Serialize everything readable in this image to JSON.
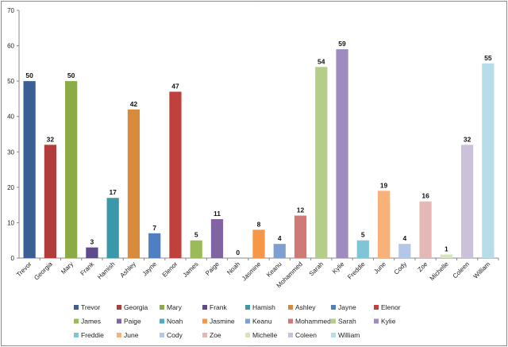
{
  "chart_data": {
    "type": "bar",
    "title": "",
    "xlabel": "",
    "ylabel": "",
    "ylim": [
      0,
      70
    ],
    "yticks": [
      0,
      10,
      20,
      30,
      40,
      50,
      60,
      70
    ],
    "grid": false,
    "legend_position": "bottom",
    "categories": [
      "Trevor",
      "Georgia",
      "Mary",
      "Frank",
      "Hamish",
      "Ashley",
      "Jayne",
      "Elenor",
      "James",
      "Paige",
      "Noah",
      "Jasmine",
      "Keanu",
      "Mohammed",
      "Sarah",
      "Kylie",
      "Freddie",
      "June",
      "Cody",
      "Zoe",
      "Michelle",
      "Coleen",
      "William"
    ],
    "values": [
      50,
      32,
      50,
      3,
      17,
      42,
      7,
      47,
      5,
      11,
      0,
      8,
      4,
      12,
      54,
      59,
      5,
      19,
      4,
      16,
      1,
      32,
      55
    ],
    "colors": [
      "#3a5f95",
      "#b23c3a",
      "#8aab45",
      "#5f4a8b",
      "#3b98ab",
      "#d98b3c",
      "#4f7fc3",
      "#c0403e",
      "#9bbb59",
      "#8064a2",
      "#4bacc6",
      "#f79646",
      "#7f9fd1",
      "#d07a78",
      "#b4cd87",
      "#a08bbe",
      "#7fc5d6",
      "#f9b17a",
      "#b5c7e6",
      "#e5b8b7",
      "#d7e4bd",
      "#ccc1da",
      "#b7dee8"
    ]
  }
}
